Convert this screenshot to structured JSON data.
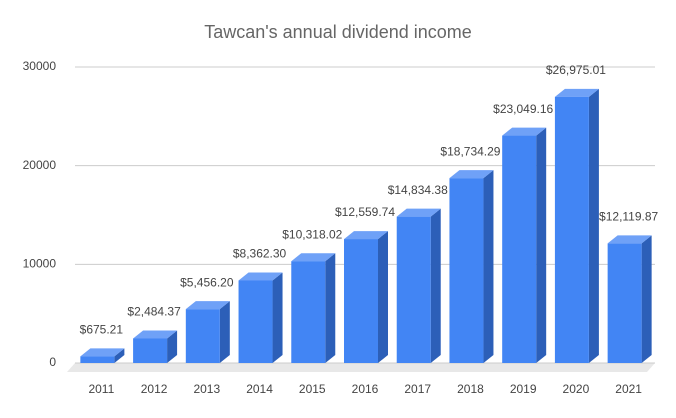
{
  "chart_data": {
    "type": "bar3d",
    "title": "Tawcan's annual dividend income",
    "categories": [
      "2011",
      "2012",
      "2013",
      "2014",
      "2015",
      "2016",
      "2017",
      "2018",
      "2019",
      "2020",
      "2021"
    ],
    "values": [
      675.21,
      2484.37,
      5456.2,
      8362.3,
      10318.02,
      12559.74,
      14834.38,
      18734.29,
      23049.16,
      26975.01,
      12119.87
    ],
    "value_labels": [
      "$675.21",
      "$2,484.37",
      "$5,456.20",
      "$8,362.30",
      "$10,318.02",
      "$12,559.74",
      "$14,834.38",
      "$18,734.29",
      "$23,049.16",
      "$26,975.01",
      "$12,119.87"
    ],
    "color": "#4285f4",
    "ylim": [
      0,
      30000
    ],
    "yticks": [
      0,
      10000,
      20000,
      30000
    ],
    "grid": true
  }
}
